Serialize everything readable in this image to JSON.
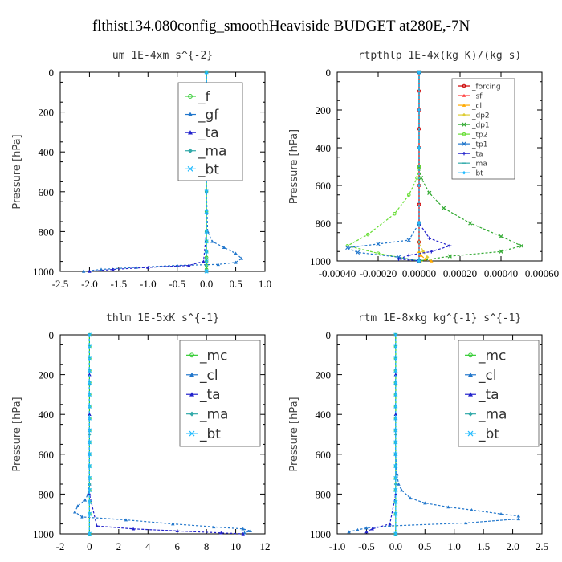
{
  "figure_title": "flthist134.080config_smoothHeaviside  BUDGET at280E,-7N",
  "chart_data": [
    {
      "type": "line",
      "title": "um   1E-4xm  s^{-2}",
      "ylabel": "Pressure [hPa]",
      "xlabel": "",
      "xlim": [
        -2.5,
        1.0
      ],
      "ylim": [
        1000,
        0
      ],
      "xticks": [
        "-2.5",
        "-2.0",
        "-1.5",
        "-1.0",
        "-0.5",
        "0.0",
        "0.5",
        "1.0"
      ],
      "yticks": [
        "0",
        "200",
        "400",
        "600",
        "800",
        "1000"
      ],
      "legend_size": "large",
      "series": [
        {
          "name": "_f",
          "color": "#33cc33",
          "x": [
            0,
            0,
            0,
            0,
            0,
            0,
            0,
            0,
            0,
            0,
            0,
            0,
            0,
            0,
            0
          ],
          "y": [
            0,
            100,
            200,
            300,
            400,
            500,
            600,
            700,
            800,
            850,
            900,
            930,
            950,
            970,
            990
          ]
        },
        {
          "name": "_gf",
          "color": "#2277cc",
          "x": [
            0,
            0,
            0,
            0,
            0.02,
            0.1,
            0.3,
            0.5,
            0.6,
            0.5,
            0.2,
            -0.5,
            -1.2,
            -1.8,
            -2.1
          ],
          "y": [
            0,
            200,
            400,
            600,
            800,
            850,
            880,
            910,
            935,
            955,
            965,
            970,
            980,
            990,
            1000
          ]
        },
        {
          "name": "_ta",
          "color": "#2222cc",
          "x": [
            0,
            0,
            0,
            0,
            0,
            -0.05,
            -0.3,
            -1.0,
            -1.6,
            -2.0
          ],
          "y": [
            0,
            200,
            400,
            600,
            800,
            950,
            970,
            980,
            990,
            1000
          ]
        },
        {
          "name": "_ma",
          "color": "#33aaaa",
          "x": [
            0,
            0,
            0,
            0,
            0,
            0,
            0
          ],
          "y": [
            0,
            200,
            400,
            600,
            800,
            900,
            1000
          ]
        },
        {
          "name": "_bt",
          "color": "#22bbff",
          "x": [
            0,
            0,
            0,
            0,
            0,
            0,
            0,
            0,
            0,
            0,
            0,
            0,
            0
          ],
          "y": [
            0,
            100,
            200,
            300,
            400,
            500,
            600,
            700,
            800,
            850,
            900,
            950,
            1000
          ]
        }
      ]
    },
    {
      "type": "line",
      "title": "rtpthlp   1E-4x(kg K)/(kg s)",
      "ylabel": "Pressure [hPa]",
      "xlabel": "",
      "xlim": [
        -0.0004,
        0.0006
      ],
      "ylim": [
        1000,
        0
      ],
      "xticks": [
        "-0.00040",
        "-0.00020",
        "0.00000",
        "0.00020",
        "0.00040",
        "0.00060"
      ],
      "yticks": [
        "0",
        "200",
        "400",
        "600",
        "800",
        "1000"
      ],
      "legend_size": "small",
      "series": [
        {
          "name": "_forcing",
          "color": "#cc0000",
          "x": [
            0,
            0,
            0,
            0,
            0,
            0,
            0,
            0,
            0,
            0,
            0
          ],
          "y": [
            0,
            100,
            200,
            300,
            400,
            500,
            600,
            700,
            800,
            900,
            1000
          ]
        },
        {
          "name": "_sf",
          "color": "#ff3333",
          "x": [
            0,
            0,
            0,
            0,
            0,
            0
          ],
          "y": [
            0,
            200,
            400,
            600,
            800,
            1000
          ]
        },
        {
          "name": "_cl",
          "color": "#ffaa00",
          "x": [
            0,
            0,
            0,
            0,
            1e-05,
            3e-05,
            6e-05
          ],
          "y": [
            0,
            400,
            800,
            950,
            970,
            990,
            1000
          ]
        },
        {
          "name": "_dp2",
          "color": "#ddcc33",
          "x": [
            0,
            0,
            0,
            2e-05,
            4e-05,
            1e-05
          ],
          "y": [
            0,
            600,
            900,
            950,
            980,
            1000
          ]
        },
        {
          "name": "_dp1",
          "color": "#33aa33",
          "x": [
            0,
            0,
            1e-05,
            5e-05,
            0.00012,
            0.00025,
            0.0004,
            0.0005,
            0.0004,
            0.00015,
            0.0
          ],
          "y": [
            0,
            500,
            560,
            640,
            720,
            800,
            870,
            920,
            950,
            975,
            1000
          ]
        },
        {
          "name": "_tp2",
          "color": "#66dd33",
          "x": [
            0,
            0,
            -1e-05,
            -5e-05,
            -0.00012,
            -0.00025,
            -0.00035,
            -0.0002,
            0
          ],
          "y": [
            0,
            500,
            560,
            650,
            750,
            860,
            920,
            960,
            1000
          ]
        },
        {
          "name": "_tp1",
          "color": "#2277cc",
          "x": [
            0,
            0,
            -5e-05,
            -0.0002,
            -0.00035,
            -0.0003,
            -0.0001,
            0
          ],
          "y": [
            0,
            800,
            890,
            910,
            930,
            955,
            980,
            1000
          ]
        },
        {
          "name": "_ta",
          "color": "#2222cc",
          "x": [
            0,
            0,
            5e-05,
            0.00015,
            6e-05,
            -5e-05,
            -0.0001,
            0
          ],
          "y": [
            0,
            800,
            880,
            920,
            950,
            970,
            990,
            1000
          ]
        },
        {
          "name": "_ma",
          "color": "#33aaaa",
          "x": [
            0,
            0,
            0,
            0
          ],
          "y": [
            0,
            400,
            800,
            1000
          ]
        },
        {
          "name": "_bt",
          "color": "#22bbff",
          "x": [
            0,
            0,
            0,
            0,
            0,
            0
          ],
          "y": [
            0,
            200,
            400,
            600,
            800,
            1000
          ]
        }
      ]
    },
    {
      "type": "line",
      "title": "thlm   1E-5xK  s^{-1}",
      "ylabel": "Pressure [hPa]",
      "xlabel": "",
      "xlim": [
        -2,
        12
      ],
      "ylim": [
        1000,
        0
      ],
      "xticks": [
        "-2",
        "0",
        "2",
        "4",
        "6",
        "8",
        "10",
        "12"
      ],
      "yticks": [
        "0",
        "200",
        "400",
        "600",
        "800",
        "1000"
      ],
      "legend_size": "large",
      "series": [
        {
          "name": "_mc",
          "color": "#33cc33",
          "x": [
            0,
            0,
            0,
            0,
            0,
            0,
            0,
            0,
            0,
            0,
            0,
            0,
            0,
            0,
            0,
            0,
            0
          ],
          "y": [
            0,
            60,
            120,
            180,
            240,
            300,
            360,
            420,
            480,
            540,
            600,
            660,
            720,
            780,
            840,
            900,
            1000
          ]
        },
        {
          "name": "_cl",
          "color": "#2277cc",
          "x": [
            0,
            0,
            0,
            0,
            0,
            -0.1,
            -0.3,
            -0.8,
            -1.0,
            -0.5,
            2.5,
            5.7,
            8.5,
            10.5,
            11.0,
            10.6
          ],
          "y": [
            0,
            200,
            400,
            600,
            750,
            800,
            830,
            860,
            890,
            915,
            930,
            950,
            965,
            975,
            985,
            995
          ]
        },
        {
          "name": "_ta",
          "color": "#2222cc",
          "x": [
            0,
            0,
            0,
            0,
            0.5,
            3,
            6,
            9,
            10.5
          ],
          "y": [
            0,
            200,
            400,
            800,
            960,
            975,
            985,
            995,
            1000
          ]
        },
        {
          "name": "_ma",
          "color": "#33aaaa",
          "x": [
            0,
            0,
            0,
            0,
            0
          ],
          "y": [
            0,
            250,
            500,
            750,
            1000
          ]
        },
        {
          "name": "_bt",
          "color": "#22bbff",
          "x": [
            0,
            0,
            0,
            0,
            0,
            0,
            0,
            0,
            0,
            0,
            0,
            0,
            0,
            0,
            0,
            0,
            0
          ],
          "y": [
            0,
            60,
            120,
            180,
            240,
            300,
            360,
            420,
            480,
            540,
            600,
            660,
            720,
            780,
            840,
            900,
            1000
          ]
        }
      ]
    },
    {
      "type": "line",
      "title": "rtm   1E-8xkg  kg^{-1}  s^{-1}",
      "ylabel": "Pressure [hPa]",
      "xlabel": "",
      "xlim": [
        -1.0,
        2.5
      ],
      "ylim": [
        1000,
        0
      ],
      "xticks": [
        "-1.0",
        "-0.5",
        "0.0",
        "0.5",
        "1.0",
        "1.5",
        "2.0",
        "2.5"
      ],
      "yticks": [
        "0",
        "200",
        "400",
        "600",
        "800",
        "1000"
      ],
      "legend_size": "large",
      "series": [
        {
          "name": "_mc",
          "color": "#33cc33",
          "x": [
            0,
            0,
            0,
            0,
            0,
            0,
            0,
            0,
            0,
            0,
            0,
            0,
            0,
            0,
            0,
            0,
            0
          ],
          "y": [
            0,
            60,
            120,
            180,
            240,
            300,
            360,
            420,
            480,
            540,
            600,
            660,
            720,
            780,
            840,
            900,
            1000
          ]
        },
        {
          "name": "_cl",
          "color": "#2277cc",
          "x": [
            0,
            0,
            0,
            0,
            0.02,
            0.05,
            0.1,
            0.25,
            0.5,
            0.9,
            1.3,
            1.8,
            2.1,
            2.1,
            1.2,
            -0.1,
            -0.5,
            -0.65,
            -0.8
          ],
          "y": [
            0,
            200,
            400,
            600,
            700,
            750,
            780,
            820,
            845,
            865,
            880,
            900,
            910,
            925,
            945,
            960,
            970,
            980,
            990
          ]
        },
        {
          "name": "_ta",
          "color": "#2222cc",
          "x": [
            0,
            0,
            0,
            0,
            0,
            -0.1,
            -0.4,
            -0.5
          ],
          "y": [
            0,
            200,
            400,
            600,
            800,
            950,
            975,
            990
          ]
        },
        {
          "name": "_ma",
          "color": "#33aaaa",
          "x": [
            0,
            0,
            0,
            0,
            0
          ],
          "y": [
            0,
            250,
            500,
            750,
            1000
          ]
        },
        {
          "name": "_bt",
          "color": "#22bbff",
          "x": [
            0,
            0,
            0,
            0,
            0,
            0,
            0,
            0,
            0,
            0,
            0,
            0,
            0,
            0,
            0,
            0,
            0
          ],
          "y": [
            0,
            60,
            120,
            180,
            240,
            300,
            360,
            420,
            480,
            540,
            600,
            660,
            720,
            780,
            840,
            900,
            1000
          ]
        }
      ]
    }
  ]
}
